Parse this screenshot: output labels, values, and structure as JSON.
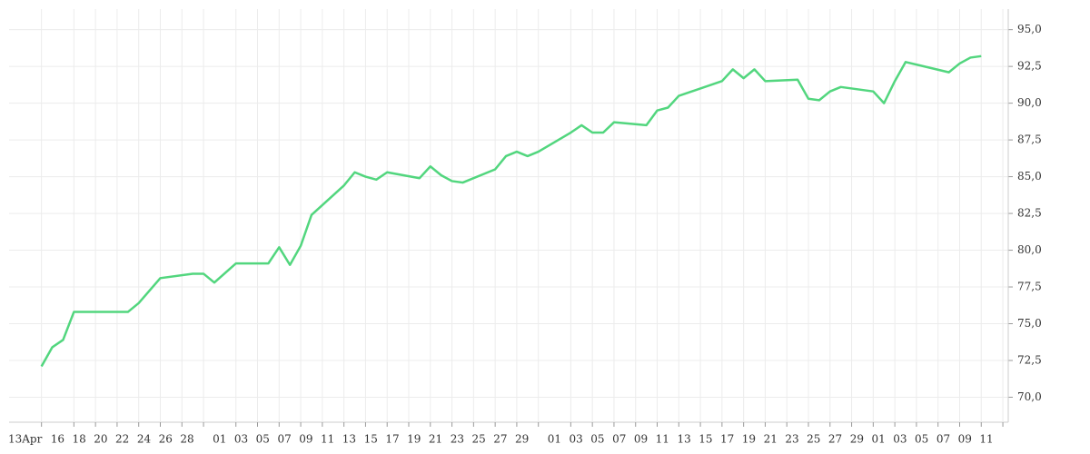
{
  "chart_data": {
    "type": "line",
    "x": [
      0,
      1,
      2,
      3,
      8,
      9,
      11,
      14,
      15,
      16,
      18,
      21,
      22,
      23,
      24,
      25,
      28,
      29,
      30,
      31,
      32,
      35,
      36,
      37,
      38,
      39,
      42,
      43,
      44,
      45,
      46,
      49,
      50,
      51,
      52,
      53,
      56,
      57,
      58,
      59,
      63,
      64,
      65,
      66,
      67,
      70,
      71,
      72,
      73,
      74,
      77,
      78,
      79,
      80,
      84,
      85,
      86,
      87
    ],
    "series": [
      {
        "color": "#52d67e",
        "values": [
          72.1,
          73.4,
          73.9,
          75.8,
          75.8,
          76.4,
          78.1,
          78.4,
          78.4,
          77.8,
          79.1,
          79.1,
          80.2,
          79.0,
          80.3,
          82.4,
          84.4,
          85.3,
          85.0,
          84.8,
          85.3,
          84.9,
          85.7,
          85.1,
          84.7,
          84.6,
          85.5,
          86.4,
          86.7,
          86.4,
          86.7,
          88.0,
          88.5,
          88.0,
          88.0,
          88.7,
          88.5,
          89.5,
          89.7,
          90.5,
          91.5,
          92.3,
          91.7,
          92.3,
          91.5,
          91.6,
          90.3,
          90.2,
          90.8,
          91.1,
          90.8,
          90.0,
          91.5,
          92.8,
          92.1,
          92.7,
          93.1,
          93.2
        ]
      }
    ],
    "xlim": [
      -3,
      89.5
    ],
    "xticks": [
      {
        "value": 0,
        "label": "13Apr"
      },
      {
        "value": 3,
        "label": "16"
      },
      {
        "value": 5,
        "label": "18"
      },
      {
        "value": 7,
        "label": "20"
      },
      {
        "value": 9,
        "label": "22"
      },
      {
        "value": 11,
        "label": "24"
      },
      {
        "value": 13,
        "label": "26"
      },
      {
        "value": 15,
        "label": "28"
      },
      {
        "value": 18,
        "label": "01"
      },
      {
        "value": 20,
        "label": "03"
      },
      {
        "value": 22,
        "label": "05"
      },
      {
        "value": 24,
        "label": "07"
      },
      {
        "value": 26,
        "label": "09"
      },
      {
        "value": 28,
        "label": "11"
      },
      {
        "value": 30,
        "label": "13"
      },
      {
        "value": 32,
        "label": "15"
      },
      {
        "value": 34,
        "label": "17"
      },
      {
        "value": 36,
        "label": "19"
      },
      {
        "value": 38,
        "label": "21"
      },
      {
        "value": 40,
        "label": "23"
      },
      {
        "value": 42,
        "label": "25"
      },
      {
        "value": 44,
        "label": "27"
      },
      {
        "value": 46,
        "label": "29"
      },
      {
        "value": 49,
        "label": "01"
      },
      {
        "value": 51,
        "label": "03"
      },
      {
        "value": 53,
        "label": "05"
      },
      {
        "value": 55,
        "label": "07"
      },
      {
        "value": 57,
        "label": "09"
      },
      {
        "value": 59,
        "label": "11"
      },
      {
        "value": 61,
        "label": "13"
      },
      {
        "value": 63,
        "label": "15"
      },
      {
        "value": 65,
        "label": "17"
      },
      {
        "value": 67,
        "label": "19"
      },
      {
        "value": 69,
        "label": "21"
      },
      {
        "value": 71,
        "label": "23"
      },
      {
        "value": 73,
        "label": "25"
      },
      {
        "value": 75,
        "label": "27"
      },
      {
        "value": 77,
        "label": "29"
      },
      {
        "value": 79,
        "label": "01"
      },
      {
        "value": 81,
        "label": "03"
      },
      {
        "value": 83,
        "label": "05"
      },
      {
        "value": 85,
        "label": "07"
      },
      {
        "value": 87,
        "label": "09"
      },
      {
        "value": 89,
        "label": "11"
      }
    ],
    "ylim": [
      68.3,
      96.4
    ],
    "yticks": [
      {
        "value": 70,
        "label": "70,0"
      },
      {
        "value": 72.5,
        "label": "72,5"
      },
      {
        "value": 75,
        "label": "75,0"
      },
      {
        "value": 77.5,
        "label": "77,5"
      },
      {
        "value": 80,
        "label": "80,0"
      },
      {
        "value": 82.5,
        "label": "82,5"
      },
      {
        "value": 85,
        "label": "85,0"
      },
      {
        "value": 87.5,
        "label": "87,5"
      },
      {
        "value": 90,
        "label": "90,0"
      },
      {
        "value": 92.5,
        "label": "92,5"
      },
      {
        "value": 95,
        "label": "95,0"
      }
    ],
    "grid": true
  }
}
